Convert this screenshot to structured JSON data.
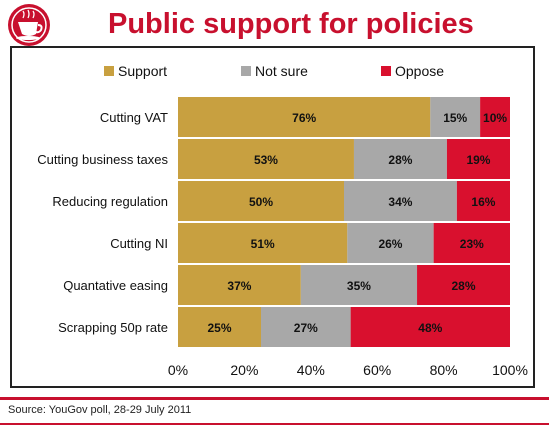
{
  "header": {
    "title": "Public support for policies",
    "logo_icon": "teacup-logo-icon"
  },
  "footer": {
    "source": "Source: YouGov poll, 28-29 July 2011"
  },
  "colors": {
    "brand_red": "#c8102e",
    "support": "#c8a040",
    "not_sure": "#a8a8a8",
    "oppose": "#d9102e"
  },
  "chart_data": {
    "type": "bar",
    "orientation": "horizontal",
    "stacked": true,
    "categories": [
      "Cutting VAT",
      "Cutting business taxes",
      "Reducing regulation",
      "Cutting NI",
      "Quantative easing",
      "Scrapping 50p rate"
    ],
    "series": [
      {
        "name": "Support",
        "values": [
          76,
          53,
          50,
          51,
          37,
          25
        ],
        "labels": [
          "76%",
          "53%",
          "50%",
          "51%",
          "37%",
          "25%"
        ],
        "color": "#c8a040"
      },
      {
        "name": "Not sure",
        "values": [
          15,
          28,
          34,
          26,
          35,
          27
        ],
        "labels": [
          "15%",
          "28%",
          "34%",
          "26%",
          "35%",
          "27%"
        ],
        "color": "#a8a8a8"
      },
      {
        "name": "Oppose",
        "values": [
          10,
          19,
          16,
          23,
          28,
          48
        ],
        "labels": [
          "10%",
          "19%",
          "16%",
          "23%",
          "28%",
          "48%"
        ],
        "color": "#d9102e"
      }
    ],
    "xlim": [
      0,
      100
    ],
    "xticks": [
      "0%",
      "20%",
      "40%",
      "60%",
      "80%",
      "100%"
    ],
    "legend": "top",
    "grid": false
  }
}
